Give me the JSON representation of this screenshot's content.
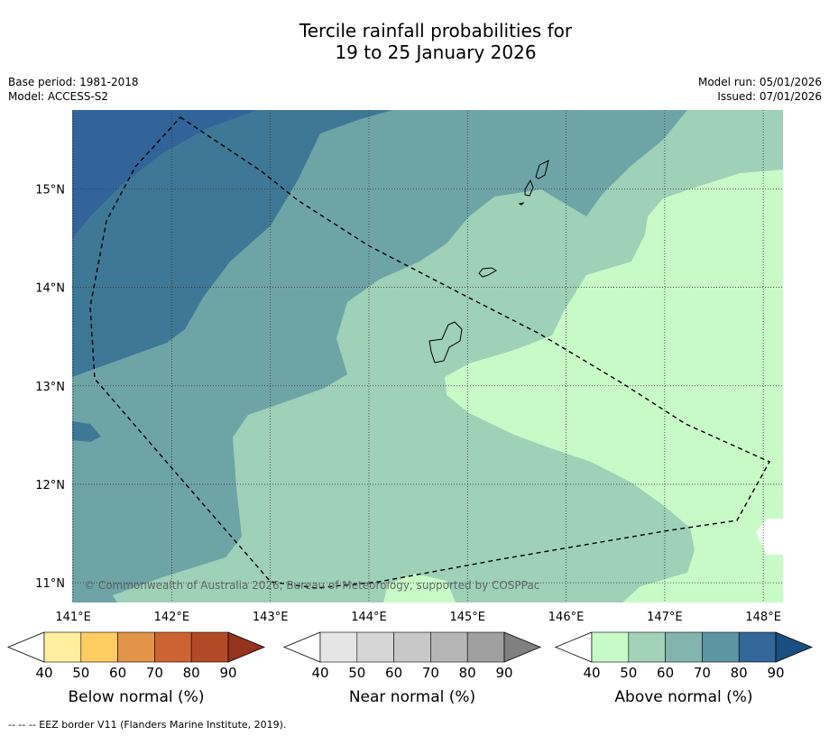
{
  "title_line1": "Tercile rainfall probabilities for",
  "title_line2": "19 to 25 January 2026",
  "base_period": "Base period: 1981-2018",
  "model": "Model: ACCESS-S2",
  "model_run": "Model run: 05/01/2026",
  "issued": "Issued: 07/01/2026",
  "copyright": "© Commonwealth of Australia 2026, Bureau of Meteorology, supported by COSPPac",
  "map": {
    "lon_labels": [
      "141°E",
      "142°E",
      "143°E",
      "144°E",
      "145°E",
      "146°E",
      "147°E",
      "148°E"
    ],
    "lat_labels": [
      "15°N",
      "14°N",
      "13°N",
      "12°N",
      "11°N"
    ],
    "lon_range": [
      140.99,
      148.2
    ],
    "lat_range": [
      10.8,
      15.8
    ]
  },
  "colorbars": [
    {
      "label": "Below normal (%)",
      "ticks": [
        "40",
        "50",
        "60",
        "70",
        "80",
        "90"
      ],
      "colors": [
        "#ffffff",
        "#fff0a0",
        "#fecd62",
        "#e29448",
        "#cd6332",
        "#b24a28",
        "#95331d"
      ]
    },
    {
      "label": "Near normal (%)",
      "ticks": [
        "40",
        "50",
        "60",
        "70",
        "80",
        "90"
      ],
      "colors": [
        "#ffffff",
        "#e5e5e5",
        "#d6d6d6",
        "#c8c8c8",
        "#b6b6b6",
        "#a0a0a0",
        "#808080"
      ]
    },
    {
      "label": "Above normal (%)",
      "ticks": [
        "40",
        "50",
        "60",
        "70",
        "80",
        "90"
      ],
      "colors": [
        "#ffffff",
        "#c8fac8",
        "#a2d2b8",
        "#84b4ae",
        "#5c96a2",
        "#336699",
        "#1a4e80"
      ]
    }
  ],
  "footer": "--  --  -- EEZ border V11 (Flanders Marine Institute, 2019)."
}
